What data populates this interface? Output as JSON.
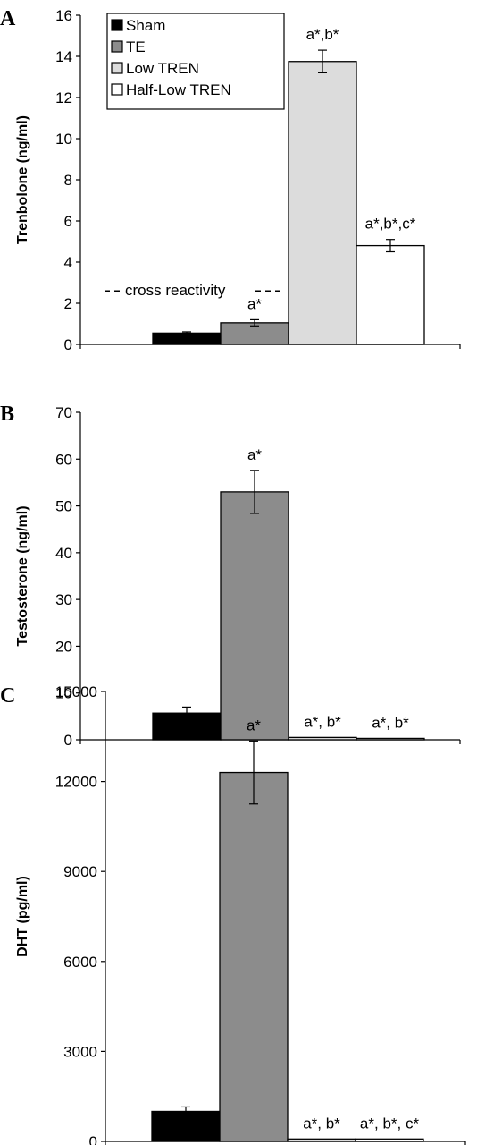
{
  "chart_data": [
    {
      "type": "bar",
      "panel": "A",
      "ylabel": "Trenbolone (ng/ml)",
      "ylim": [
        0,
        16
      ],
      "yticks": [
        0,
        2,
        4,
        6,
        8,
        10,
        12,
        14,
        16
      ],
      "categories": [
        "Sham",
        "TE",
        "Low TREN",
        "Half-Low TREN"
      ],
      "values": [
        0.55,
        1.05,
        13.75,
        4.8
      ],
      "errors": [
        0.06,
        0.15,
        0.55,
        0.3
      ],
      "annotations": [
        "",
        "a*",
        "a*,b*",
        "a*,b*,c*"
      ],
      "reference_line": {
        "label": "cross reactivity",
        "value": 2.6
      },
      "legend": {
        "position": "top-left",
        "entries": [
          "Sham",
          "TE",
          "Low TREN",
          "Half-Low TREN"
        ]
      }
    },
    {
      "type": "bar",
      "panel": "B",
      "ylabel": "Testosterone (ng/ml)",
      "ylim": [
        0,
        70
      ],
      "yticks": [
        0,
        10,
        20,
        30,
        40,
        50,
        60,
        70
      ],
      "categories": [
        "Sham",
        "TE",
        "Low TREN",
        "Half-Low TREN"
      ],
      "values": [
        5.7,
        53,
        0.5,
        0.3
      ],
      "errors": [
        1.3,
        4.6,
        0,
        0
      ],
      "annotations": [
        "",
        "a*",
        "a*, b*",
        "a*, b*"
      ]
    },
    {
      "type": "bar",
      "panel": "C",
      "ylabel": "DHT (pg/ml)",
      "ylim": [
        0,
        15000
      ],
      "yticks": [
        0,
        3000,
        6000,
        9000,
        12000,
        15000
      ],
      "categories": [
        "Sham",
        "TE",
        "Low TREN",
        "Half-Low TREN"
      ],
      "values": [
        1000,
        12300,
        80,
        80
      ],
      "errors": [
        150,
        1050,
        0,
        0
      ],
      "annotations": [
        "",
        "a*",
        "a*, b*",
        "a*, b*, c*"
      ]
    }
  ],
  "colors": {
    "Sham": "#000000",
    "TE": "#8c8c8c",
    "Low TREN": "#dcdcdc",
    "Half-Low TREN": "#ffffff"
  }
}
